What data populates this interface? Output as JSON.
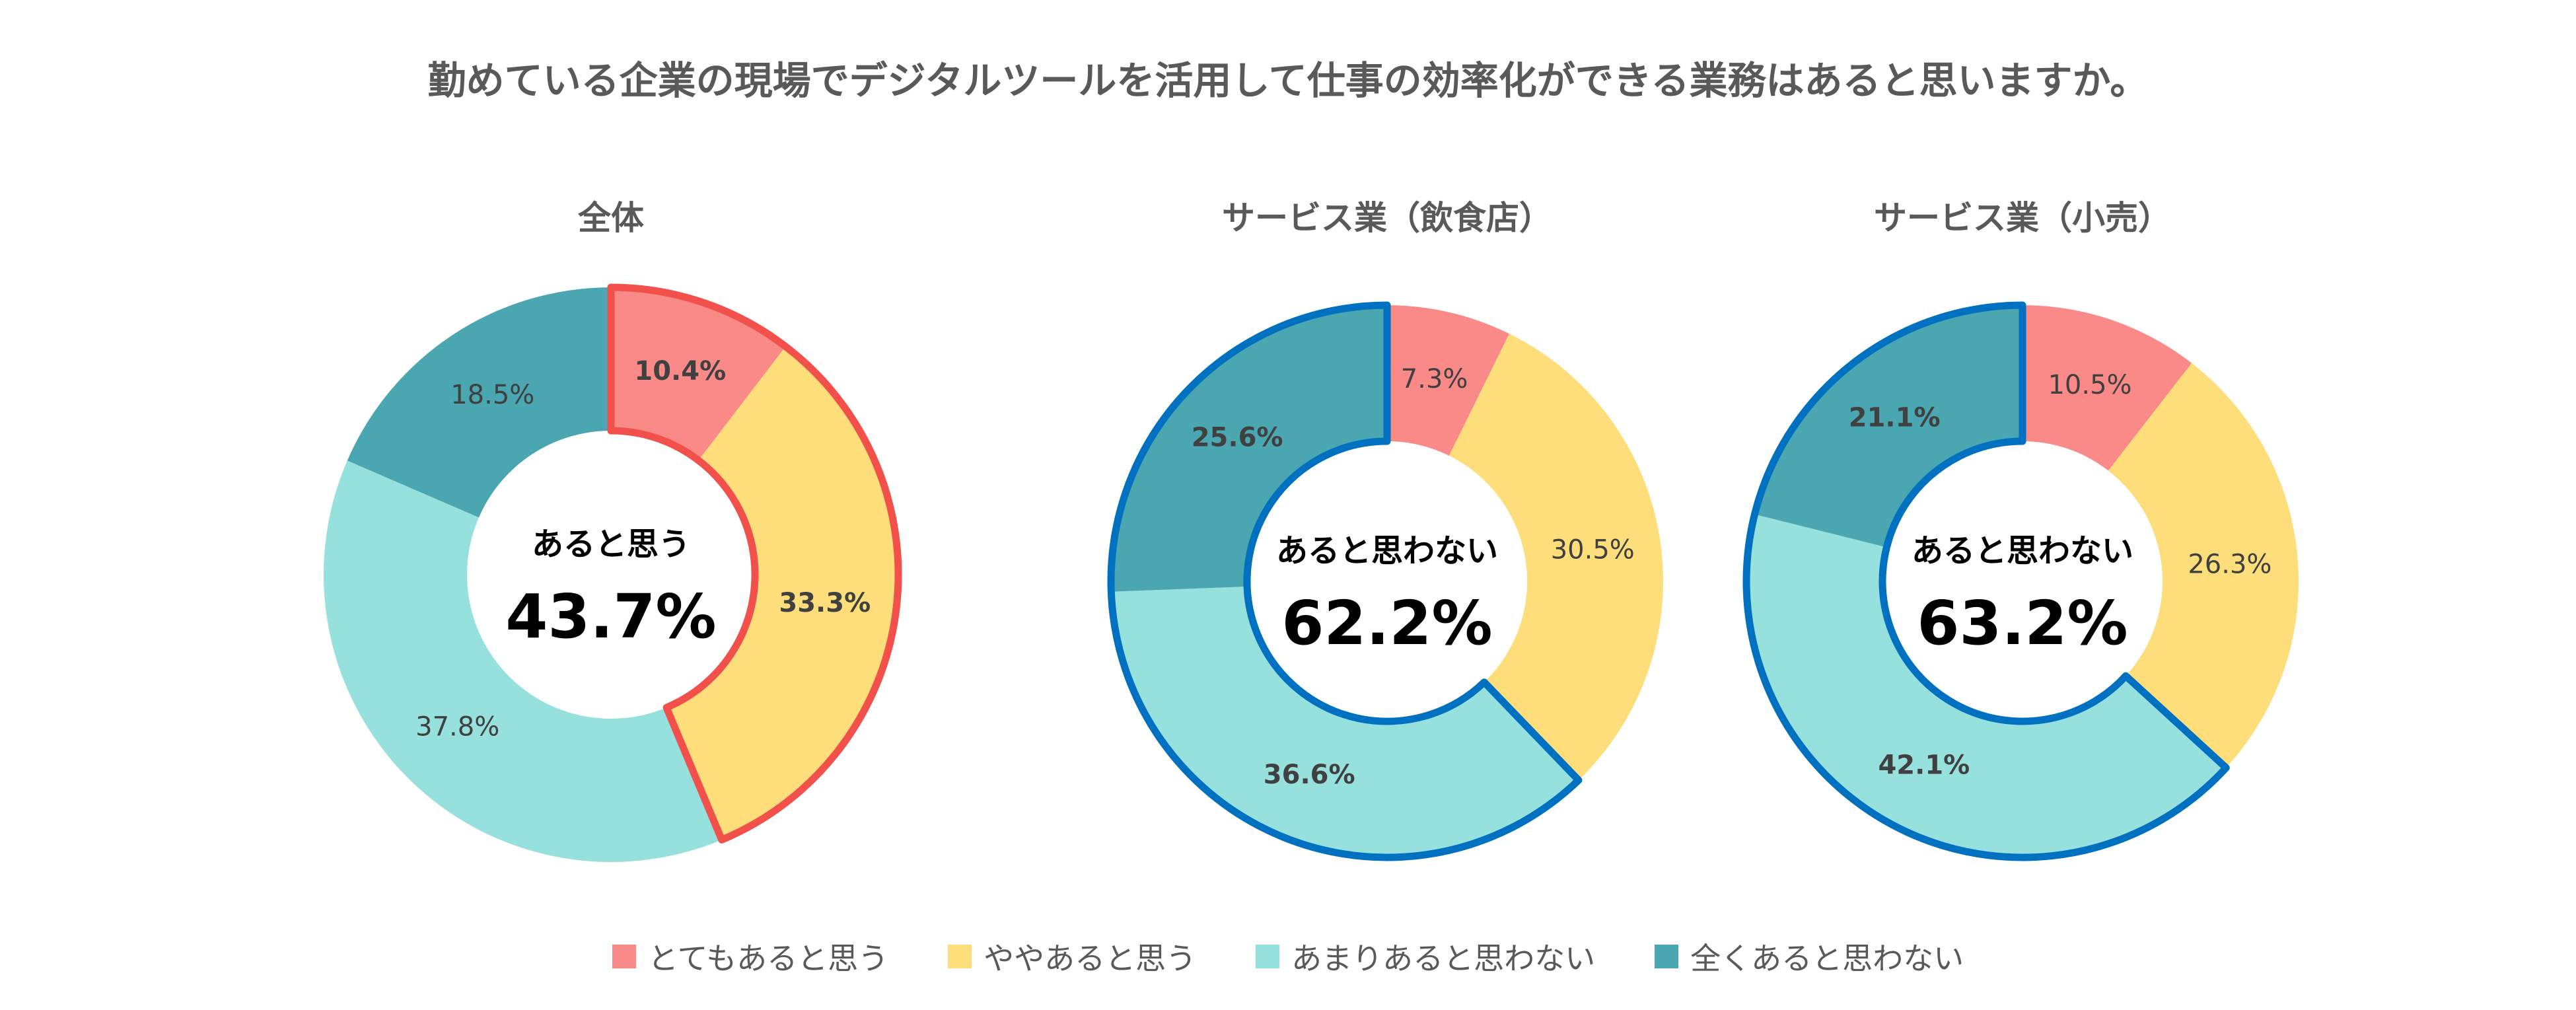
{
  "title": "勤めている企業の現場でデジタルツールを活用して仕事の効率化ができる業務はあると思いますか。",
  "colors": {
    "very": "#F98A87",
    "somewhat": "#FEDE7A",
    "not_much": "#96E0DE",
    "not_at_all": "#4AA6B0",
    "highlight_yes": "#F2504B",
    "highlight_no": "#0070C0"
  },
  "legend": [
    "とてもあると思う",
    "ややあると思う",
    "あまりあると思わない",
    "全くあると思わない"
  ],
  "chart_data": [
    {
      "type": "pie",
      "title": "全体",
      "categories": [
        "とてもあると思う",
        "ややあると思う",
        "あまりあると思わない",
        "全くあると思わない"
      ],
      "values": [
        10.4,
        33.3,
        37.8,
        18.5
      ],
      "labels": [
        "10.4%",
        "33.3%",
        "37.8%",
        "18.5%"
      ],
      "center_label": "あると思う",
      "center_value": "43.7%",
      "highlight": [
        0,
        1
      ],
      "highlight_color": "#F2504B"
    },
    {
      "type": "pie",
      "title": "サービス業（飲食店）",
      "categories": [
        "とてもあると思う",
        "ややあると思う",
        "あまりあると思わない",
        "全くあると思わない"
      ],
      "values": [
        7.3,
        30.5,
        36.6,
        25.6
      ],
      "labels": [
        "7.3%",
        "30.5%",
        "36.6%",
        "25.6%"
      ],
      "center_label": "あると思わない",
      "center_value": "62.2%",
      "highlight": [
        2,
        3
      ],
      "highlight_color": "#0070C0"
    },
    {
      "type": "pie",
      "title": "サービス業（小売）",
      "categories": [
        "とてもあると思う",
        "ややあると思う",
        "あまりあると思わない",
        "全くあると思わない"
      ],
      "values": [
        10.5,
        26.3,
        42.1,
        21.1
      ],
      "labels": [
        "10.5%",
        "26.3%",
        "42.1%",
        "21.1%"
      ],
      "center_label": "あると思わない",
      "center_value": "63.2%",
      "highlight": [
        2,
        3
      ],
      "highlight_color": "#0070C0"
    }
  ]
}
